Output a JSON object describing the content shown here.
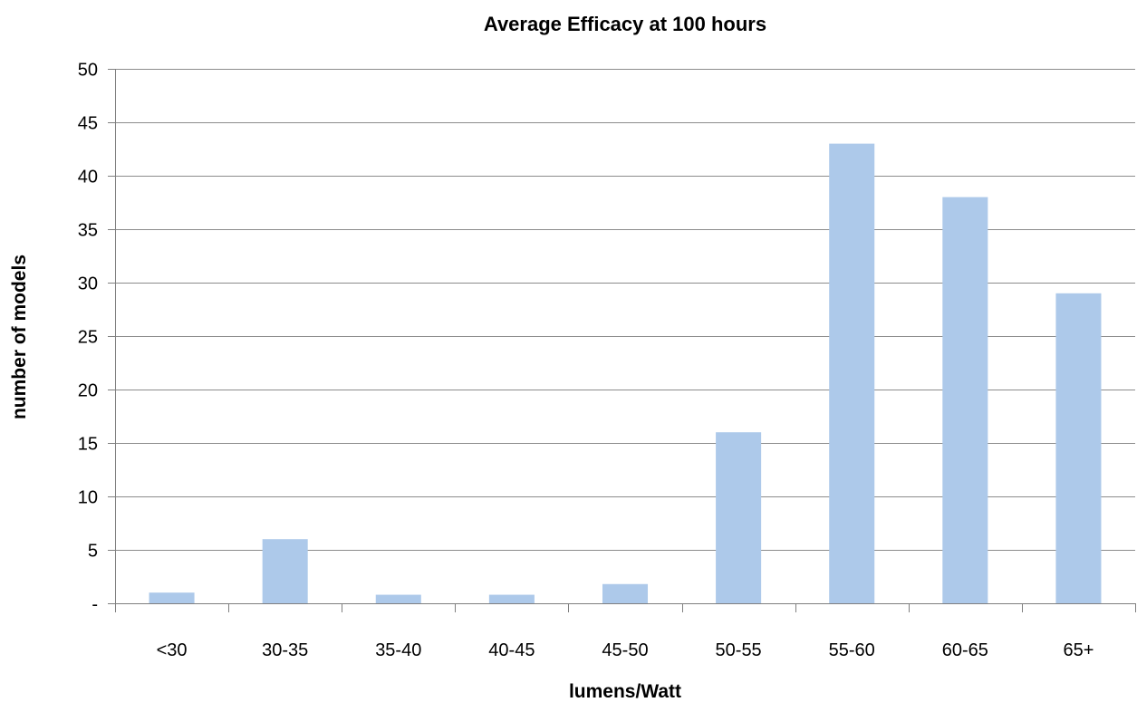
{
  "chart_data": {
    "type": "bar",
    "title": "Average Efficacy at 100 hours",
    "xlabel": "lumens/Watt",
    "ylabel": "number of models",
    "categories": [
      "<30",
      "30-35",
      "35-40",
      "40-45",
      "45-50",
      "50-55",
      "55-60",
      "60-65",
      "65+"
    ],
    "values": [
      1,
      6,
      0.8,
      0.8,
      1.8,
      16,
      43,
      38,
      29
    ],
    "ylim": [
      0,
      50
    ],
    "yticks": [
      0,
      5,
      10,
      15,
      20,
      25,
      30,
      35,
      40,
      45,
      50
    ],
    "ytick_labels": [
      "-",
      "5",
      "10",
      "15",
      "20",
      "25",
      "30",
      "35",
      "40",
      "45",
      "50"
    ],
    "grid": true,
    "legend": "none",
    "colors": {
      "bar": "#adc9ea",
      "grid": "#8c8c8c",
      "axis": "#7f7f7f"
    }
  }
}
